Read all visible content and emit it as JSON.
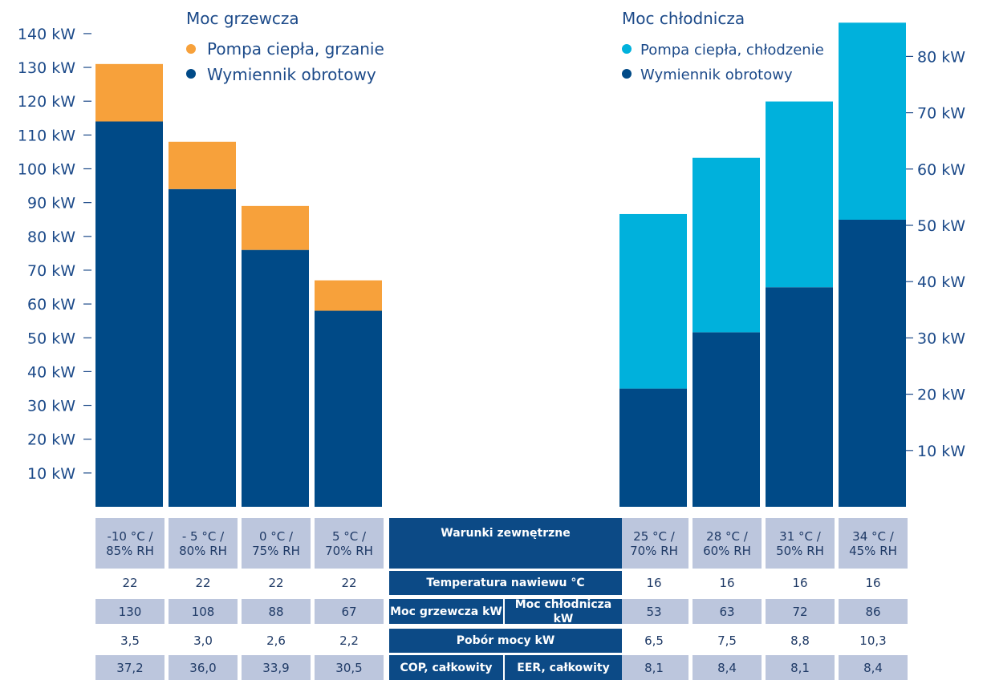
{
  "chart_data": [
    {
      "type": "bar",
      "stacked": true,
      "title": "Moc grzewcza",
      "categories": [
        "-10 °C / 85% RH",
        "- 5 °C / 80% RH",
        "0 °C / 75% RH",
        "5 °C / 70% RH"
      ],
      "series": [
        {
          "name": "Wymiennik obrotowy",
          "values": [
            114,
            94,
            76,
            58
          ],
          "color": "#004a87"
        },
        {
          "name": "Pompa ciepła, grzanie",
          "values": [
            17,
            14,
            13,
            9
          ],
          "color": "#f7a13b"
        }
      ],
      "y_axis_side": "left",
      "ylim": [
        0,
        150
      ],
      "yticks": [
        "10 kW",
        "20 kW",
        "30 kW",
        "40 kW",
        "50 kW",
        "60 kW",
        "70 kW",
        "80 kW",
        "90 kW",
        "100 kW",
        "110 kW",
        "120 kW",
        "130 kW",
        "140 kW"
      ],
      "legend_position": "top"
    },
    {
      "type": "bar",
      "stacked": true,
      "title": "Moc chłodnicza",
      "categories": [
        "25 °C / 70% RH",
        "28 °C / 60% RH",
        "31 °C / 50% RH",
        "34 °C / 45% RH"
      ],
      "series": [
        {
          "name": "Wymiennik obrotowy",
          "values": [
            21,
            31,
            39,
            51
          ],
          "color": "#004a87"
        },
        {
          "name": "Pompa ciepła, chłodzenie",
          "values": [
            31,
            31,
            33,
            35
          ],
          "color": "#00b1dc"
        }
      ],
      "y_axis_side": "right",
      "ylim": [
        0,
        90
      ],
      "yticks": [
        "10 kW",
        "20 kW",
        "30 kW",
        "40 kW",
        "50 kW",
        "60 kW",
        "70 kW",
        "80 kW"
      ],
      "legend_position": "top"
    }
  ],
  "colors": {
    "wymiennik": "#004a87",
    "grzanie": "#f7a13b",
    "chlodzenie": "#00b1dc",
    "axis_text": "#1c4a89",
    "table_grey": "#bcc6dd",
    "table_head": "#0c4a86"
  },
  "table": {
    "rows": [
      {
        "label": "Warunki zewnętrzne",
        "left": [
          "-10 °C /\n85% RH",
          "- 5 °C /\n80% RH",
          "0 °C /\n75% RH",
          "5 °C /\n70% RH"
        ],
        "right": [
          "25 °C /\n70% RH",
          "28 °C /\n60% RH",
          "31 °C /\n50% RH",
          "34 °C /\n45% RH"
        ]
      },
      {
        "label": "Temperatura nawiewu °C",
        "left": [
          "22",
          "22",
          "22",
          "22"
        ],
        "right": [
          "16",
          "16",
          "16",
          "16"
        ]
      },
      {
        "label_left": "Moc grzewcza kW",
        "label_right": "Moc chłodnicza kW",
        "left": [
          "130",
          "108",
          "88",
          "67"
        ],
        "right": [
          "53",
          "63",
          "72",
          "86"
        ]
      },
      {
        "label": "Pobór mocy kW",
        "left": [
          "3,5",
          "3,0",
          "2,6",
          "2,2"
        ],
        "right": [
          "6,5",
          "7,5",
          "8,8",
          "10,3"
        ]
      },
      {
        "label_left": "COP, całkowity",
        "label_right": "EER, całkowity",
        "left": [
          "37,2",
          "36,0",
          "33,9",
          "30,5"
        ],
        "right": [
          "8,1",
          "8,4",
          "8,1",
          "8,4"
        ]
      }
    ]
  }
}
